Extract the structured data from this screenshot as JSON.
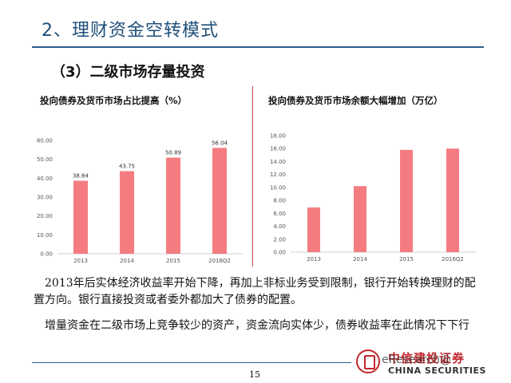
{
  "slide": {
    "title": "2、理财资金空转模式",
    "subtitle": "（3）二级市场存量投资",
    "paragraph_1": "2013年后实体经济收益率开始下降，再加上非标业务受到限制，银行开始转换理财的配置方向。银行直接投资或者委外都加大了债券的配置。",
    "paragraph_2": "增量资金在二级市场上竞争较少的资产，资金流向实体少，债券收益率在此情况下下行",
    "page_number": "15",
    "logo_cn": "中信建投证券",
    "logo_en": "CHINA SECURITIES",
    "watermark": "eResearch@"
  },
  "colors": {
    "bar": "#f47c80",
    "title": "#1f4f7a",
    "accent": "#c0272d"
  },
  "chart_data": [
    {
      "type": "bar",
      "title": "投向债券及货币市场占比提高（%）",
      "categories": [
        "2013",
        "2014",
        "2015",
        "2016Q2"
      ],
      "values": [
        38.64,
        43.75,
        50.89,
        56.04
      ],
      "value_labels": [
        "38.64",
        "43.75",
        "50.89",
        "56.04"
      ],
      "yticks": [
        "0.00",
        "10.00",
        "20.00",
        "30.00",
        "40.00",
        "50.00",
        "60.00"
      ],
      "ylim": [
        0,
        60
      ],
      "grid": false,
      "legend": "none"
    },
    {
      "type": "bar",
      "title": "投向债券及货币市场余额大幅增加（万亿）",
      "categories": [
        "2013",
        "2014",
        "2015",
        "2016Q2"
      ],
      "values": [
        6.9,
        10.2,
        15.8,
        16.0
      ],
      "yticks": [
        "0.00",
        "2.00",
        "4.00",
        "6.00",
        "8.00",
        "10.00",
        "12.00",
        "14.00",
        "16.00",
        "18.00"
      ],
      "ylim": [
        0,
        18
      ],
      "grid": false,
      "legend": "none"
    }
  ]
}
